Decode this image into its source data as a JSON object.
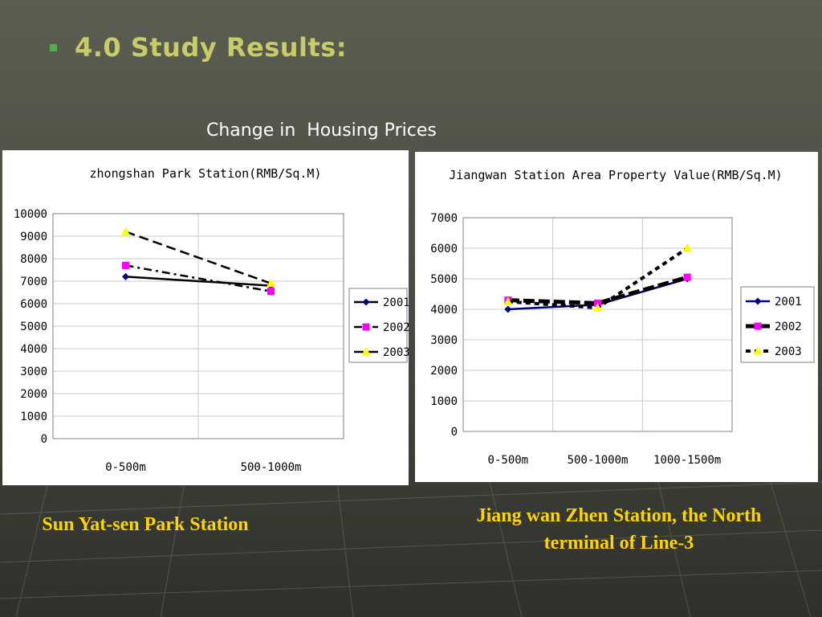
{
  "slide": {
    "title": "4.0 Study Results:",
    "subtitle": "Change in  Housing Prices"
  },
  "captions": {
    "left": "Sun Yat-sen Park Station",
    "right_line1": "Jiang wan Zhen Station, the North",
    "right_line2": "terminal of Line-3"
  },
  "colors": {
    "title": "#c8cc66",
    "caption": "#ffd400",
    "bullet": "#4fb04f",
    "series_2001": "#000080",
    "series_2002": "#ff00ff",
    "series_2003": "#ffff00"
  },
  "chart_data": [
    {
      "type": "line",
      "title": "zhongshan Park Station(RMB/Sq.M)",
      "categories": [
        "0-500m",
        "500-1000m"
      ],
      "yticks": [
        "0",
        "1000",
        "2000",
        "3000",
        "4000",
        "5000",
        "6000",
        "7000",
        "8000",
        "9000",
        "10000"
      ],
      "ylim": [
        0,
        10000
      ],
      "grid": true,
      "legend_position": "right",
      "series": [
        {
          "name": "2001",
          "values": [
            7200,
            6800
          ],
          "marker": "diamond",
          "line": "solid"
        },
        {
          "name": "2002",
          "values": [
            7700,
            6550
          ],
          "marker": "square",
          "line": "dashdot"
        },
        {
          "name": "2003",
          "values": [
            9200,
            6900
          ],
          "marker": "triangle",
          "line": "dashed"
        }
      ]
    },
    {
      "type": "line",
      "title": "Jiangwan Station Area Property Value(RMB/Sq.M)",
      "categories": [
        "0-500m",
        "500-1000m",
        "1000-1500m"
      ],
      "yticks": [
        "0",
        "1000",
        "2000",
        "3000",
        "4000",
        "5000",
        "6000",
        "7000"
      ],
      "ylim": [
        0,
        7000
      ],
      "grid": true,
      "legend_position": "right",
      "series": [
        {
          "name": "2001",
          "values": [
            4000,
            4150,
            5000
          ],
          "marker": "diamond",
          "line": "solid"
        },
        {
          "name": "2002",
          "values": [
            4300,
            4200,
            5050
          ],
          "marker": "square",
          "line": "thickdash"
        },
        {
          "name": "2003",
          "values": [
            4250,
            4050,
            6000
          ],
          "marker": "triangle",
          "line": "dotted"
        }
      ]
    }
  ]
}
